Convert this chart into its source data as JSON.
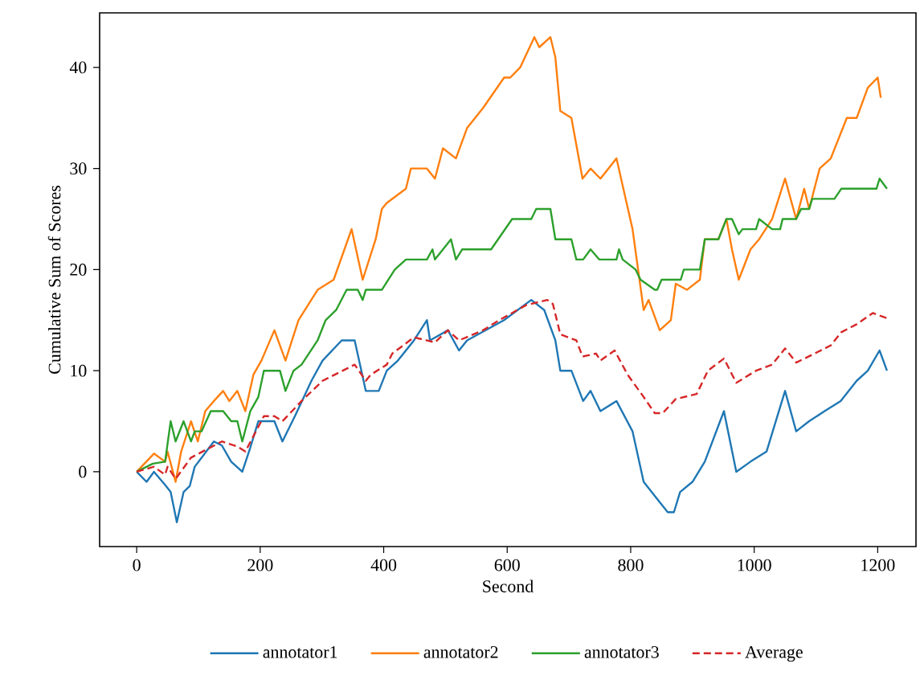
{
  "chart_data": {
    "type": "line",
    "xlabel": "Second",
    "ylabel": "Cumulative Sum of Scores",
    "xlim": [
      -60,
      1262
    ],
    "ylim": [
      -7.4,
      45.4
    ],
    "xticks": [
      0,
      200,
      400,
      600,
      800,
      1000,
      1200
    ],
    "yticks": [
      0,
      10,
      20,
      30,
      40
    ],
    "legend": "bottom",
    "series": [
      {
        "name": "annotator1",
        "color": "#1f77b4",
        "line_style": "solid",
        "x": [
          0,
          16,
          28,
          46,
          55,
          65,
          76,
          86,
          94,
          125,
          138,
          153,
          171,
          184,
          197,
          223,
          236,
          257,
          283,
          301,
          332,
          353,
          371,
          377,
          392,
          405,
          423,
          449,
          470,
          475,
          504,
          522,
          535,
          595,
          639,
          660,
          678,
          686,
          704,
          723,
          735,
          751,
          777,
          803,
          821,
          847,
          860,
          870,
          880,
          900,
          920,
          951,
          971,
          994,
          1020,
          1050,
          1068,
          1089,
          1114,
          1140,
          1166,
          1184,
          1203,
          1215
        ],
        "values": [
          0,
          -1,
          0,
          -1.3,
          -2,
          -5,
          -2,
          -1.4,
          0.5,
          3,
          2.6,
          1,
          0,
          2.4,
          5,
          5,
          3,
          5.6,
          9,
          11,
          13,
          13,
          8,
          8,
          8,
          10,
          11,
          13,
          15,
          13,
          14,
          12,
          13,
          15,
          17,
          16,
          13,
          10,
          10,
          7,
          8,
          6,
          7,
          4,
          -1,
          -3,
          -4,
          -4,
          -2,
          -1,
          1,
          6,
          0,
          1,
          2,
          8,
          4,
          5,
          6,
          7,
          9,
          10,
          12,
          10
        ]
      },
      {
        "name": "annotator2",
        "color": "#ff7f0e",
        "line_style": "solid",
        "x": [
          0,
          28,
          46,
          50,
          63,
          72,
          88,
          99,
          111,
          125,
          140,
          150,
          163,
          176,
          189,
          202,
          223,
          241,
          262,
          293,
          319,
          348,
          366,
          387,
          397,
          405,
          436,
          444,
          470,
          483,
          496,
          517,
          535,
          561,
          595,
          605,
          621,
          644,
          652,
          670,
          678,
          686,
          704,
          722,
          735,
          751,
          777,
          803,
          821,
          829,
          847,
          865,
          873,
          891,
          912,
          920,
          942,
          955,
          964,
          975,
          994,
          1008,
          1029,
          1050,
          1068,
          1081,
          1089,
          1106,
          1124,
          1150,
          1166,
          1184,
          1200,
          1205
        ],
        "values": [
          0,
          1.8,
          1,
          2,
          -1,
          2,
          5,
          3,
          6,
          7,
          8,
          7,
          8,
          6,
          9.6,
          11,
          14,
          11,
          15,
          18,
          19,
          24,
          19,
          23,
          26,
          26.6,
          28,
          30,
          30,
          29,
          32,
          31,
          34,
          36,
          39,
          39,
          40,
          43,
          42,
          43,
          41,
          35.7,
          35,
          29,
          30,
          29,
          31,
          24,
          16,
          17,
          14,
          15,
          18.6,
          18,
          19,
          23,
          23,
          25,
          22,
          19,
          22,
          23,
          25,
          29,
          25,
          28,
          26,
          30,
          31,
          35,
          35,
          38,
          39,
          37
        ]
      },
      {
        "name": "annotator3",
        "color": "#2ca02c",
        "line_style": "solid",
        "x": [
          0,
          26,
          46,
          55,
          63,
          76,
          88,
          94,
          105,
          120,
          140,
          153,
          163,
          171,
          184,
          197,
          206,
          232,
          241,
          254,
          267,
          293,
          306,
          323,
          340,
          358,
          366,
          371,
          397,
          418,
          436,
          470,
          479,
          483,
          509,
          517,
          527,
          574,
          608,
          639,
          647,
          670,
          678,
          704,
          712,
          723,
          735,
          749,
          777,
          781,
          787,
          808,
          816,
          839,
          843,
          850,
          881,
          886,
          912,
          920,
          942,
          955,
          964,
          975,
          981,
          1003,
          1008,
          1029,
          1042,
          1046,
          1068,
          1076,
          1089,
          1094,
          1130,
          1141,
          1198,
          1203,
          1215
        ],
        "values": [
          0,
          0.8,
          1,
          5,
          3,
          5,
          3,
          4,
          4,
          6,
          6,
          5,
          5,
          3,
          6,
          7.4,
          10,
          10,
          8,
          10,
          10.6,
          13,
          15,
          16,
          18,
          18,
          17,
          18,
          18,
          20,
          21,
          21,
          22,
          21,
          23,
          21,
          22,
          22,
          25,
          25,
          26,
          26,
          23,
          23,
          21,
          21,
          22,
          21,
          21,
          22,
          21,
          20,
          19,
          18,
          18,
          19,
          19,
          20,
          20,
          23,
          23,
          25,
          25,
          23.5,
          24,
          24,
          25,
          24,
          24,
          25,
          25,
          26,
          26,
          27,
          27,
          28,
          28,
          29,
          28
        ]
      },
      {
        "name": "Average",
        "color": "#d62728",
        "line_style": "dashed",
        "x": [
          0,
          28,
          46,
          50,
          63,
          88,
          138,
          163,
          176,
          206,
          223,
          236,
          267,
          301,
          353,
          371,
          379,
          405,
          414,
          449,
          483,
          504,
          522,
          561,
          587,
          631,
          665,
          674,
          686,
          712,
          722,
          744,
          751,
          774,
          795,
          821,
          839,
          852,
          873,
          907,
          925,
          951,
          971,
          1003,
          1029,
          1050,
          1068,
          1098,
          1124,
          1141,
          1166,
          1192,
          1215
        ],
        "values": [
          0,
          0.5,
          -0.3,
          0.5,
          -0.7,
          1.4,
          3,
          2.5,
          2,
          5.5,
          5.5,
          5,
          7,
          9,
          10.6,
          9,
          9.6,
          10.6,
          11.7,
          13.3,
          12.8,
          14,
          13,
          14,
          15,
          16.5,
          17,
          16.6,
          13.6,
          13,
          11.4,
          11.7,
          11,
          12,
          9.6,
          7.4,
          5.8,
          5.8,
          7.2,
          7.7,
          10,
          11.2,
          8.8,
          10,
          10.6,
          12.2,
          10.8,
          11.7,
          12.5,
          13.8,
          14.6,
          15.7,
          15.2
        ]
      }
    ]
  }
}
